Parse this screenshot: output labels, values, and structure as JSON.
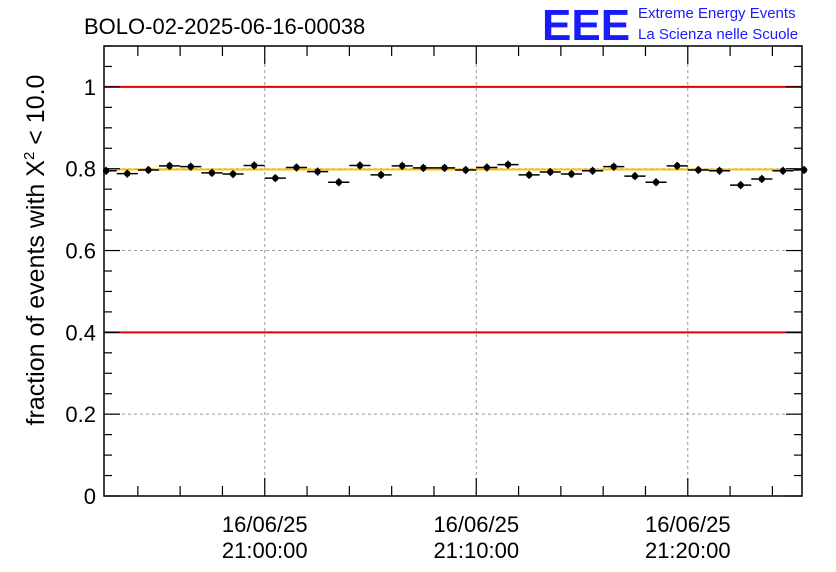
{
  "chart_data": {
    "type": "scatter",
    "title": "BOLO-02-2025-06-16-00038",
    "ylabel_prefix": "fraction of events with ",
    "ylabel_chi": "X",
    "ylabel_exp": "2",
    "ylabel_suffix": " < 10.0",
    "xlabel": "",
    "ylim": [
      0,
      1.1
    ],
    "xlim_minutes": [
      -7.6,
      25.4
    ],
    "y_ticks": [
      {
        "value": 0,
        "label": "0"
      },
      {
        "value": 0.2,
        "label": "0.2"
      },
      {
        "value": 0.4,
        "label": "0.4"
      },
      {
        "value": 0.6,
        "label": "0.6"
      },
      {
        "value": 0.8,
        "label": "0.8"
      },
      {
        "value": 1.0,
        "label": "1"
      }
    ],
    "x_ticks": [
      {
        "minutes": 0,
        "date": "16/06/25",
        "time": "21:00:00"
      },
      {
        "minutes": 10,
        "date": "16/06/25",
        "time": "21:10:00"
      },
      {
        "minutes": 20,
        "date": "16/06/25",
        "time": "21:20:00"
      }
    ],
    "reference_lines": [
      {
        "name": "upper-limit",
        "value": 1.0,
        "color": "#e00000"
      },
      {
        "name": "lower-limit",
        "value": 0.4,
        "color": "#e00000"
      },
      {
        "name": "mean",
        "value": 0.798,
        "color": "#ffbf00"
      }
    ],
    "bin_width_minutes": 1,
    "x_minutes": [
      -7.5,
      -6.5,
      -5.5,
      -4.5,
      -3.5,
      -2.5,
      -1.5,
      -0.5,
      0.5,
      1.5,
      2.5,
      3.5,
      4.5,
      5.5,
      6.5,
      7.5,
      8.5,
      9.5,
      10.5,
      11.5,
      12.5,
      13.5,
      14.5,
      15.5,
      16.5,
      17.5,
      18.5,
      19.5,
      20.5,
      21.5,
      22.5,
      23.5,
      24.5,
      25.5
    ],
    "values": [
      0.795,
      0.788,
      0.797,
      0.807,
      0.805,
      0.79,
      0.787,
      0.808,
      0.777,
      0.803,
      0.793,
      0.767,
      0.808,
      0.785,
      0.807,
      0.802,
      0.802,
      0.797,
      0.803,
      0.81,
      0.785,
      0.792,
      0.787,
      0.795,
      0.805,
      0.782,
      0.767,
      0.807,
      0.797,
      0.795,
      0.76,
      0.775,
      0.795,
      0.797
    ],
    "colors": {
      "axis": "#000000",
      "grid": "#9a9a9a",
      "marker": "#000000"
    }
  },
  "logo": {
    "letters": "EEE",
    "line1": "Extreme Energy Events",
    "line2": "La Scienza nelle Scuole",
    "color": "#1a1aff"
  }
}
